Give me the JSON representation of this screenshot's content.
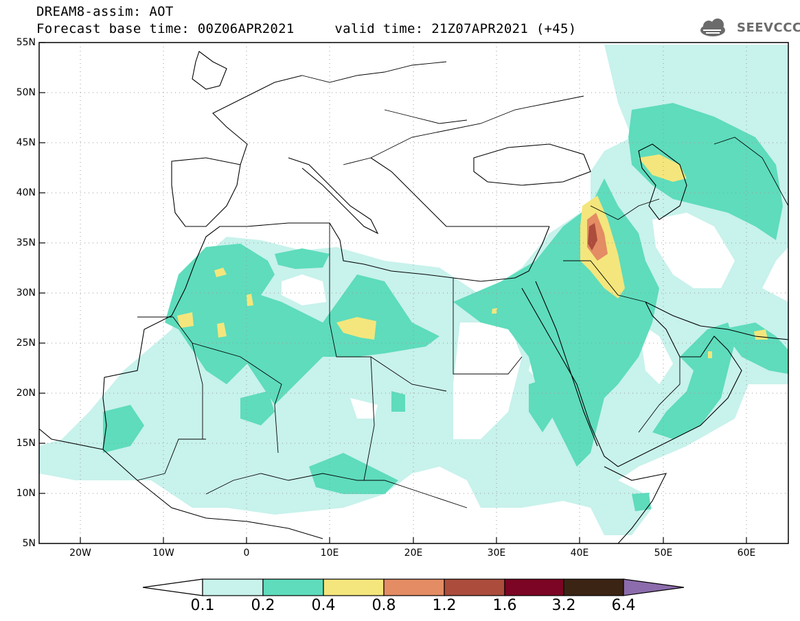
{
  "title": {
    "line1": "DREAM8-assim: AOT",
    "line2": "Forecast base time: 00Z06APR2021     valid time: 21Z07APR2021 (+45)"
  },
  "logo": {
    "text": "SEEVCCC",
    "icon": "cloud-icon"
  },
  "map": {
    "projection": "cylindrical-equidistant",
    "lon_range": [
      -25,
      65
    ],
    "lat_range": [
      5,
      55
    ],
    "lat_ticks": [
      "55N",
      "50N",
      "45N",
      "40N",
      "35N",
      "30N",
      "25N",
      "20N",
      "15N",
      "10N",
      "5N"
    ],
    "lon_ticks": [
      "20W",
      "10W",
      "0",
      "10E",
      "20E",
      "30E",
      "40E",
      "50E",
      "60E"
    ],
    "grid": "dotted"
  },
  "legend": {
    "levels": [
      "0.1",
      "0.2",
      "0.4",
      "0.8",
      "1.2",
      "1.6",
      "3.2",
      "6.4"
    ],
    "colors": {
      "c1": "#c8f2ec",
      "c2": "#5edcbc",
      "c3": "#f4e67c",
      "c4": "#e48c64",
      "c5": "#ac4c3c",
      "c6": "#7c0424",
      "c7": "#3c2414",
      "c8": "#8c6cac"
    }
  }
}
